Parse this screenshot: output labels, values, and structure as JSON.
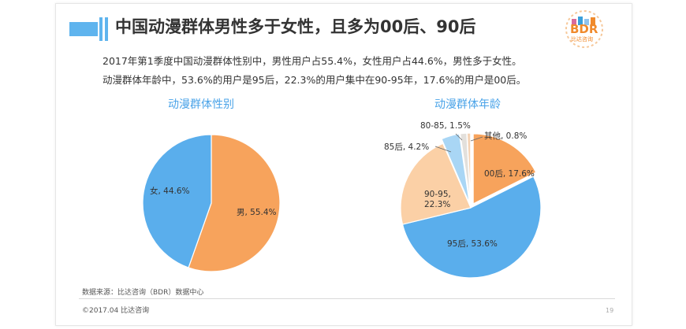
{
  "header": {
    "title": "中国动漫群体男性多于女性，且多为00后、90后"
  },
  "logo": {
    "text": "BDR",
    "subtext": "比达咨询",
    "colors": [
      "#f08a2c",
      "#8fc3ee",
      "#d96a9a",
      "#3aa0db"
    ]
  },
  "summary": {
    "line1": "2017年第1季度中国动漫群体性别中，男性用户占55.4%，女性用户占44.6%，男性多于女性。",
    "line2": "动漫群体年龄中，53.6%的用户是95后，22.3%的用户集中在90-95年，17.6%的用户是00后。"
  },
  "colors": {
    "title_accent": "#5fb4ee",
    "chart_title": "#4aa3e8",
    "blue": "#5aaeec",
    "orange": "#f7a35c",
    "light_orange": "#fbd0a6",
    "light_blue": "#a9d6f5",
    "pale": "#e3e0dc"
  },
  "chart_data": [
    {
      "type": "pie",
      "title": "动漫群体性别",
      "slices": [
        {
          "name": "男",
          "value": 55.4,
          "label": "男, 55.4%",
          "color": "#f7a35c"
        },
        {
          "name": "女",
          "value": 44.6,
          "label": "女, 44.6%",
          "color": "#5aaeec"
        }
      ]
    },
    {
      "type": "pie",
      "title": "动漫群体年龄",
      "slices": [
        {
          "name": "00后",
          "value": 17.6,
          "label": "00后, 17.6%",
          "color": "#f7a35c"
        },
        {
          "name": "95后",
          "value": 53.6,
          "label": "95后, 53.6%",
          "color": "#5aaeec"
        },
        {
          "name": "90-95",
          "value": 22.3,
          "label": "90-95,\n22.3%",
          "color": "#fbd0a6"
        },
        {
          "name": "85后",
          "value": 4.2,
          "label": "85后, 4.2%",
          "color": "#a9d6f5"
        },
        {
          "name": "80-85",
          "value": 1.5,
          "label": "80-85, 1.5%",
          "color": "#e3e0dc"
        },
        {
          "name": "其他",
          "value": 0.8,
          "label": "其他, 0.8%",
          "color": "#f4d2b4"
        }
      ]
    }
  ],
  "footer": {
    "source": "数据来源：比达咨询（BDR）数据中心",
    "copyright": "©2017.04   比达咨询",
    "page_number": "19"
  }
}
